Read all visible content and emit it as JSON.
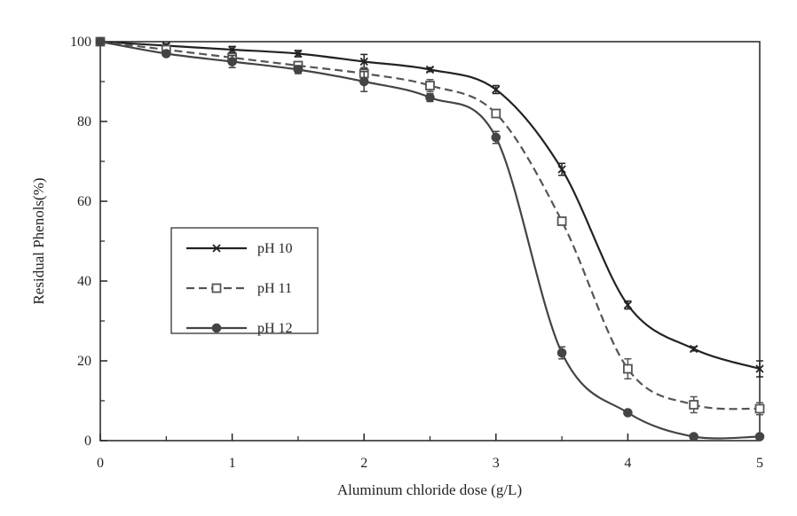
{
  "chart_data": {
    "type": "line",
    "xlabel": "Aluminum chloride dose (g/L)",
    "ylabel": "Residual Phenols(%)",
    "xlim": [
      0,
      5
    ],
    "ylim": [
      0,
      100
    ],
    "x_ticks": [
      "0",
      "1",
      "2",
      "3",
      "4",
      "5"
    ],
    "y_ticks": [
      "0",
      "20",
      "40",
      "60",
      "80",
      "100"
    ],
    "grid": false,
    "legend_position": "middle-left",
    "x": [
      0,
      0.5,
      1,
      1.5,
      2,
      2.5,
      3,
      3.5,
      4,
      4.5,
      5
    ],
    "series": [
      {
        "name": "pH 10",
        "marker": "x",
        "line": "solid",
        "color": "#222222",
        "values": [
          100,
          99,
          98,
          97,
          95,
          93,
          88,
          68,
          34,
          23,
          18
        ],
        "errors": [
          0,
          0.5,
          0.8,
          0.8,
          1.8,
          0.5,
          1.0,
          1.5,
          1.0,
          0.5,
          2.0
        ]
      },
      {
        "name": "pH 11",
        "marker": "open-square",
        "line": "dashed",
        "color": "#555555",
        "values": [
          100,
          98,
          96,
          94,
          92,
          89,
          82,
          55,
          18,
          9,
          8
        ],
        "errors": [
          0,
          0.5,
          1.0,
          1.0,
          1.5,
          1.5,
          0.8,
          0.8,
          2.5,
          2.0,
          1.5
        ]
      },
      {
        "name": "pH 12",
        "marker": "filled-circle",
        "line": "solid",
        "color": "#444444",
        "values": [
          100,
          97,
          95,
          93,
          90,
          86,
          76,
          22,
          7,
          1,
          1
        ],
        "errors": [
          0,
          0.5,
          1.5,
          1.0,
          2.5,
          1.0,
          1.5,
          1.5,
          0.5,
          0.5,
          0.5
        ]
      }
    ]
  }
}
